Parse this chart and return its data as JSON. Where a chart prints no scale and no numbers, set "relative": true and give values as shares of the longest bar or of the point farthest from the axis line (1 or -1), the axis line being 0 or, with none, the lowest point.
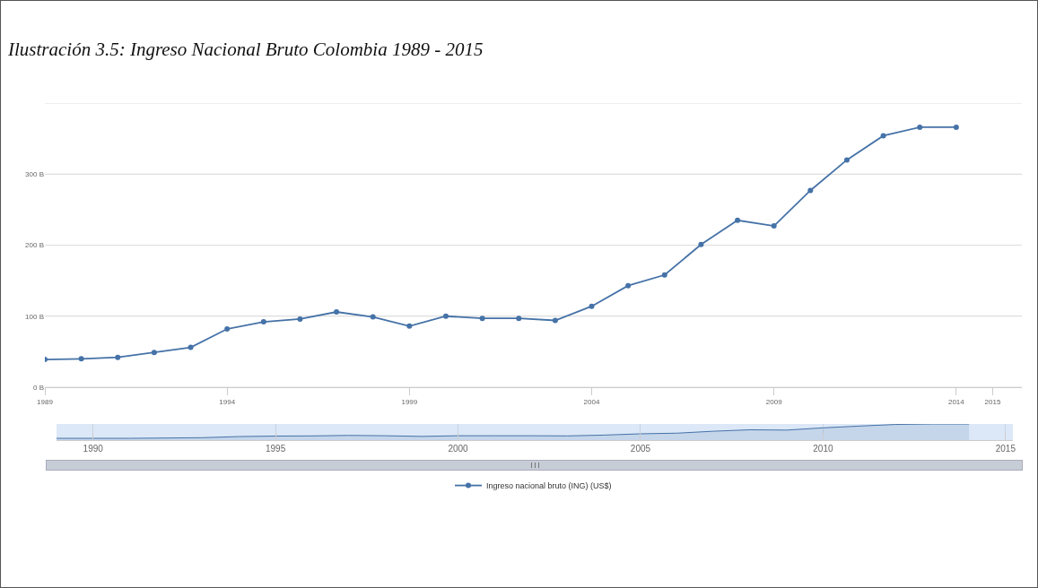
{
  "chart_data": [
    {
      "type": "line",
      "title": "Ilustración 3.5: Ingreso Nacional Bruto Colombia 1989 - 2015",
      "x": [
        1989,
        1990,
        1991,
        1992,
        1993,
        1994,
        1995,
        1996,
        1997,
        1998,
        1999,
        2000,
        2001,
        2002,
        2003,
        2004,
        2005,
        2006,
        2007,
        2008,
        2009,
        2010,
        2011,
        2012,
        2013,
        2014
      ],
      "series": [
        {
          "name": "Ingreso nacional bruto (ING) (US$)",
          "color": "#4572a7",
          "values": [
            39,
            40,
            42,
            49,
            56,
            82,
            92,
            96,
            106,
            99,
            86,
            100,
            97,
            97,
            94,
            114,
            143,
            158,
            201,
            235,
            227,
            277,
            320,
            354,
            366,
            366
          ]
        }
      ],
      "xlim": [
        1989,
        2015.8
      ],
      "xticks": [
        1989,
        1994,
        1999,
        2004,
        2009,
        2014,
        2015
      ],
      "ylim": [
        0,
        400
      ],
      "yticks": [
        {
          "value": 0,
          "label": "0 B"
        },
        {
          "value": 100,
          "label": "100 B"
        },
        {
          "value": 200,
          "label": "200 B"
        },
        {
          "value": 300,
          "label": "300 B"
        },
        {
          "value": 400,
          "label": null
        }
      ],
      "grid": "y",
      "legend": "bottom",
      "marker": "circle",
      "line_style": "solid"
    },
    {
      "type": "area",
      "relative": true,
      "x": [
        1989,
        1990,
        1991,
        1992,
        1993,
        1994,
        1995,
        1996,
        1997,
        1998,
        1999,
        2000,
        2001,
        2002,
        2003,
        2004,
        2005,
        2006,
        2007,
        2008,
        2009,
        2010,
        2011,
        2012,
        2013,
        2014
      ],
      "series": [
        {
          "color": "#4572a7",
          "values": [
            0.11,
            0.11,
            0.11,
            0.13,
            0.15,
            0.22,
            0.25,
            0.26,
            0.29,
            0.27,
            0.23,
            0.27,
            0.27,
            0.27,
            0.26,
            0.31,
            0.39,
            0.43,
            0.55,
            0.64,
            0.62,
            0.76,
            0.87,
            0.97,
            1,
            1
          ]
        }
      ],
      "xlim": [
        1989,
        2015.2
      ],
      "xticks": [
        1990,
        1995,
        2000,
        2005,
        2010,
        2015
      ],
      "tick_labels": "x",
      "grid": "x",
      "legend": false,
      "marker": "none"
    }
  ]
}
